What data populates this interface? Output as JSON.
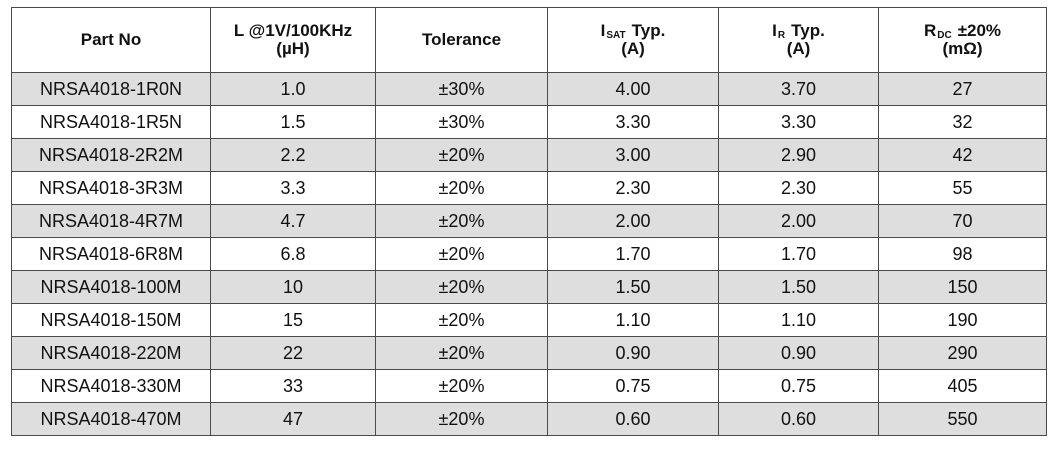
{
  "table": {
    "headers": {
      "part_no": "Part No",
      "inductance_line1": "L @1V/100KHz",
      "inductance_line2": "(µH)",
      "tolerance": "Tolerance",
      "isat_main": "I",
      "isat_sub": "SAT",
      "isat_suffix": "Typ.",
      "isat_unit": "(A)",
      "ir_main": "I",
      "ir_sub": "R",
      "ir_suffix": "Typ.",
      "ir_unit": "(A)",
      "rdc_main": "R",
      "rdc_sub": "DC",
      "rdc_suffix": "±20%",
      "rdc_unit": "(mΩ)"
    },
    "rows": [
      {
        "part_no": "NRSA4018-1R0N",
        "inductance": "1.0",
        "tolerance": "±30%",
        "isat": "4.00",
        "ir": "3.70",
        "rdc": "27"
      },
      {
        "part_no": "NRSA4018-1R5N",
        "inductance": "1.5",
        "tolerance": "±30%",
        "isat": "3.30",
        "ir": "3.30",
        "rdc": "32"
      },
      {
        "part_no": "NRSA4018-2R2M",
        "inductance": "2.2",
        "tolerance": "±20%",
        "isat": "3.00",
        "ir": "2.90",
        "rdc": "42"
      },
      {
        "part_no": "NRSA4018-3R3M",
        "inductance": "3.3",
        "tolerance": "±20%",
        "isat": "2.30",
        "ir": "2.30",
        "rdc": "55"
      },
      {
        "part_no": "NRSA4018-4R7M",
        "inductance": "4.7",
        "tolerance": "±20%",
        "isat": "2.00",
        "ir": "2.00",
        "rdc": "70"
      },
      {
        "part_no": "NRSA4018-6R8M",
        "inductance": "6.8",
        "tolerance": "±20%",
        "isat": "1.70",
        "ir": "1.70",
        "rdc": "98"
      },
      {
        "part_no": "NRSA4018-100M",
        "inductance": "10",
        "tolerance": "±20%",
        "isat": "1.50",
        "ir": "1.50",
        "rdc": "150"
      },
      {
        "part_no": "NRSA4018-150M",
        "inductance": "15",
        "tolerance": "±20%",
        "isat": "1.10",
        "ir": "1.10",
        "rdc": "190"
      },
      {
        "part_no": "NRSA4018-220M",
        "inductance": "22",
        "tolerance": "±20%",
        "isat": "0.90",
        "ir": "0.90",
        "rdc": "290"
      },
      {
        "part_no": "NRSA4018-330M",
        "inductance": "33",
        "tolerance": "±20%",
        "isat": "0.75",
        "ir": "0.75",
        "rdc": "405"
      },
      {
        "part_no": "NRSA4018-470M",
        "inductance": "47",
        "tolerance": "±20%",
        "isat": "0.60",
        "ir": "0.60",
        "rdc": "550"
      }
    ],
    "colors": {
      "shaded_row": "#dedede",
      "plain_row": "#ffffff",
      "border": "#4a4a4a"
    }
  }
}
